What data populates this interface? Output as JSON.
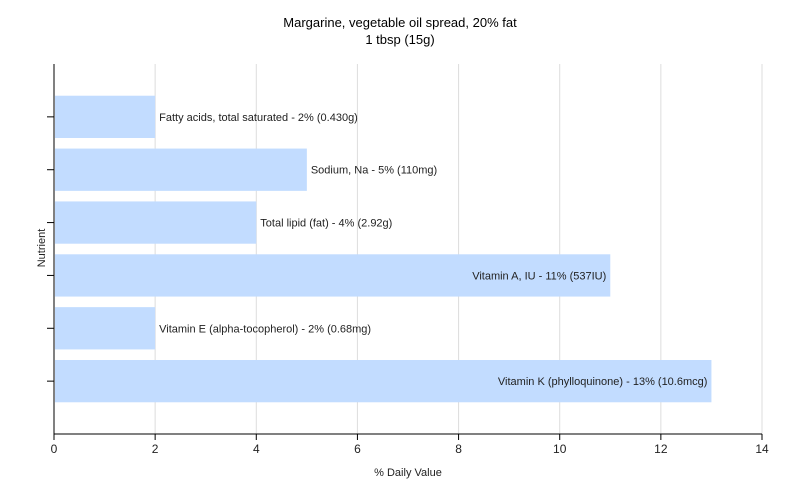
{
  "chart_data": {
    "type": "bar",
    "orientation": "horizontal",
    "title": "Margarine, vegetable oil spread, 20% fat",
    "subtitle": "1 tbsp (15g)",
    "xlabel": "% Daily Value",
    "ylabel": "Nutrient",
    "xlim": [
      0,
      14
    ],
    "xticks": [
      0,
      2,
      4,
      6,
      8,
      10,
      12,
      14
    ],
    "grid": "vertical",
    "bar_color": "#c2dcff",
    "categories": [
      "Fatty acids, total saturated",
      "Sodium, Na",
      "Total lipid (fat)",
      "Vitamin A, IU",
      "Vitamin E (alpha-tocopherol)",
      "Vitamin K (phylloquinone)"
    ],
    "values": [
      2,
      5,
      4,
      11,
      2,
      13
    ],
    "labels": [
      "Fatty acids, total saturated - 2% (0.430g)",
      "Sodium, Na - 5% (110mg)",
      "Total lipid (fat) - 4% (2.92g)",
      "Vitamin A, IU - 11% (537IU)",
      "Vitamin E (alpha-tocopherol) - 2% (0.68mg)",
      "Vitamin K (phylloquinone) - 13% (10.6mcg)"
    ]
  }
}
